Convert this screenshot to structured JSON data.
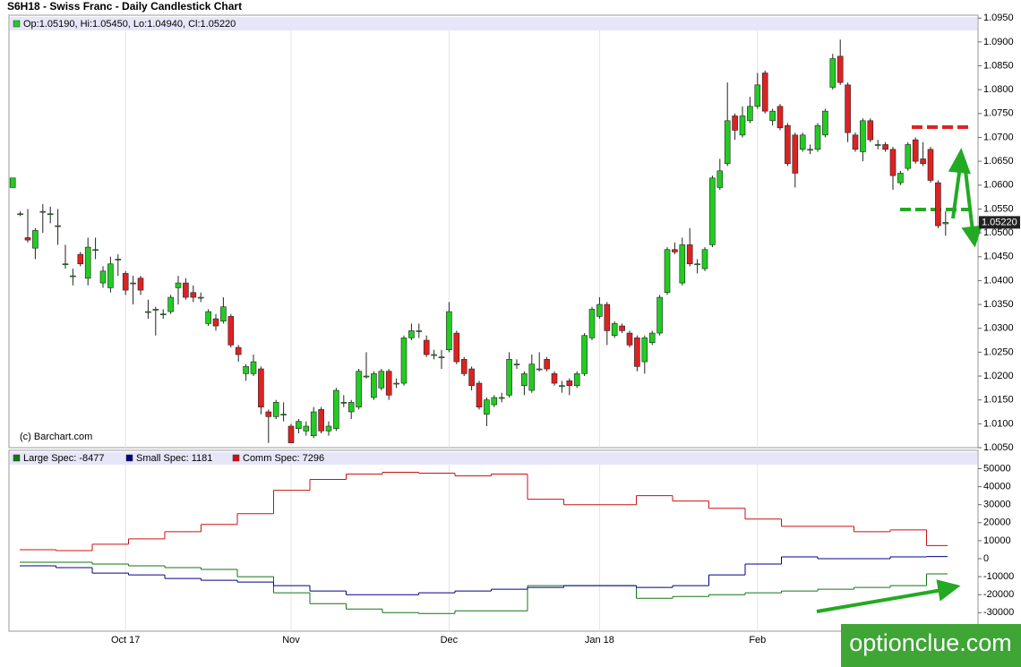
{
  "chart_data": [
    {
      "type": "candlestick",
      "title": "S6H18 - Swiss Franc - Daily Candlestick Chart",
      "ohlc_label": "Op:1.05190, Hi:1.05450, Lo:1.04940, Cl:1.05220",
      "copyright": "(c) Barchart.com",
      "categories": [
        null,
        null,
        null,
        null,
        null,
        null,
        null,
        null,
        null,
        null,
        null,
        null,
        null,
        null,
        null,
        "Oct 17",
        null,
        null,
        null,
        null,
        null,
        null,
        null,
        null,
        null,
        null,
        null,
        null,
        null,
        null,
        null,
        null,
        null,
        null,
        null,
        null,
        null,
        "Nov",
        null,
        null,
        null,
        null,
        null,
        null,
        null,
        null,
        null,
        null,
        null,
        null,
        null,
        null,
        null,
        null,
        null,
        null,
        null,
        null,
        "Dec",
        null,
        null,
        null,
        null,
        null,
        null,
        null,
        null,
        null,
        null,
        null,
        null,
        null,
        null,
        null,
        null,
        null,
        null,
        null,
        "Jan 18",
        null,
        null,
        null,
        null,
        null,
        null,
        null,
        null,
        null,
        null,
        null,
        null,
        null,
        null,
        null,
        null,
        null,
        null,
        null,
        null,
        "Feb",
        null,
        null,
        null,
        null,
        null,
        null,
        null,
        null,
        null,
        null,
        null,
        null,
        null,
        null,
        null,
        null,
        null,
        null,
        null,
        null,
        null,
        null,
        null,
        null,
        null
      ],
      "open": [
        1.0595,
        1.054,
        1.049,
        1.0468,
        1.0545,
        1.054,
        1.0515,
        1.0435,
        1.041,
        1.0455,
        1.0405,
        1.0465,
        1.0395,
        1.0385,
        1.0445,
        1.0415,
        1.0395,
        1.0405,
        1.0335,
        1.034,
        1.033,
        1.0335,
        1.0385,
        1.0395,
        1.0375,
        1.0365,
        1.031,
        1.032,
        1.0315,
        1.0325,
        1.026,
        1.0205,
        1.0205,
        1.0215,
        1.0125,
        1.0115,
        1.012,
        1.0095,
        1.009,
        1.0085,
        1.0075,
        1.013,
        1.0085,
        1.009,
        1.0145,
        1.0125,
        1.0135,
        1.02,
        1.0155,
        1.0175,
        1.021,
        1.0185,
        1.0185,
        1.028,
        1.0295,
        1.0275,
        1.0245,
        1.024,
        1.0255,
        1.029,
        1.0235,
        1.0215,
        1.0185,
        1.012,
        1.014,
        1.0155,
        1.016,
        1.0225,
        1.018,
        1.017,
        1.0215,
        1.0235,
        1.0205,
        1.018,
        1.019,
        1.018,
        1.0205,
        1.028,
        1.0325,
        1.035,
        1.0285,
        1.0305,
        1.029,
        1.028,
        1.023,
        1.027,
        1.029,
        1.0375,
        1.0465,
        1.0395,
        1.0475,
        1.0435,
        1.0425,
        1.0475,
        1.0595,
        1.0645,
        1.0745,
        1.0705,
        1.0735,
        1.0765,
        1.0835,
        1.0735,
        1.0765,
        1.0725,
        1.0705,
        1.0675,
        1.0675,
        1.0675,
        1.0705,
        1.0805,
        1.087,
        1.081,
        1.0705,
        1.067,
        1.0735,
        1.0685,
        1.0685,
        1.0675,
        1.0605,
        1.0635,
        1.0695,
        1.0655,
        1.0675,
        1.0605,
        1.0519
      ],
      "high": [
        1.0615,
        1.0545,
        1.055,
        1.051,
        1.056,
        1.0555,
        1.055,
        1.0475,
        1.0425,
        1.046,
        1.049,
        1.049,
        1.043,
        1.045,
        1.0455,
        1.042,
        1.041,
        1.041,
        1.036,
        1.0345,
        1.034,
        1.037,
        1.041,
        1.0405,
        1.039,
        1.0375,
        1.034,
        1.033,
        1.0365,
        1.033,
        1.0265,
        1.0225,
        1.0245,
        1.022,
        1.013,
        1.015,
        1.0145,
        1.01,
        1.011,
        1.0105,
        1.0135,
        1.0135,
        1.0105,
        1.0175,
        1.016,
        1.015,
        1.0215,
        1.025,
        1.021,
        1.0215,
        1.0215,
        1.0195,
        1.0285,
        1.031,
        1.031,
        1.0285,
        1.0255,
        1.0255,
        1.0355,
        1.0295,
        1.024,
        1.022,
        1.019,
        1.0155,
        1.016,
        1.0165,
        1.025,
        1.0235,
        1.021,
        1.0245,
        1.025,
        1.024,
        1.021,
        1.019,
        1.0195,
        1.021,
        1.029,
        1.0345,
        1.0365,
        1.0355,
        1.0315,
        1.031,
        1.0295,
        1.0285,
        1.0285,
        1.0295,
        1.037,
        1.047,
        1.048,
        1.049,
        1.051,
        1.0445,
        1.047,
        1.062,
        1.0655,
        1.0815,
        1.075,
        1.0765,
        1.0785,
        1.0835,
        1.084,
        1.076,
        1.077,
        1.073,
        1.071,
        1.071,
        1.0685,
        1.073,
        1.076,
        1.0875,
        1.0905,
        1.0815,
        1.071,
        1.074,
        1.074,
        1.0695,
        1.069,
        1.068,
        1.063,
        1.069,
        1.07,
        1.069,
        1.068,
        1.061,
        1.0545
      ],
      "low": [
        1.0595,
        1.0535,
        1.048,
        1.0445,
        1.05,
        1.052,
        1.0475,
        1.0425,
        1.039,
        1.043,
        1.039,
        1.0445,
        1.0385,
        1.0375,
        1.041,
        1.037,
        1.035,
        1.037,
        1.032,
        1.0285,
        1.032,
        1.033,
        1.035,
        1.036,
        1.0355,
        1.0355,
        1.0305,
        1.0295,
        1.031,
        1.026,
        1.023,
        1.019,
        1.02,
        1.012,
        1.006,
        1.011,
        1.0105,
        1.006,
        1.008,
        1.0075,
        1.007,
        1.008,
        1.0075,
        1.0085,
        1.0135,
        1.011,
        1.013,
        1.0195,
        1.015,
        1.017,
        1.015,
        1.0175,
        1.018,
        1.0275,
        1.028,
        1.024,
        1.0235,
        1.0215,
        1.025,
        1.0225,
        1.02,
        1.017,
        1.013,
        1.0095,
        1.0135,
        1.0145,
        1.0155,
        1.0215,
        1.016,
        1.0165,
        1.021,
        1.021,
        1.018,
        1.0165,
        1.016,
        1.0175,
        1.02,
        1.0275,
        1.032,
        1.0265,
        1.028,
        1.029,
        1.026,
        1.021,
        1.0205,
        1.0265,
        1.0285,
        1.037,
        1.0455,
        1.039,
        1.043,
        1.0415,
        1.042,
        1.047,
        1.059,
        1.064,
        1.0695,
        1.07,
        1.073,
        1.076,
        1.075,
        1.0725,
        1.0715,
        1.064,
        1.0595,
        1.067,
        1.0665,
        1.067,
        1.07,
        1.08,
        1.081,
        1.069,
        1.067,
        1.065,
        1.069,
        1.0675,
        1.067,
        1.059,
        1.06,
        1.063,
        1.0645,
        1.064,
        1.0605,
        1.051,
        1.0494
      ],
      "close": [
        1.0615,
        1.054,
        1.0485,
        1.0505,
        1.0545,
        1.054,
        1.0515,
        1.0435,
        1.041,
        1.0435,
        1.047,
        1.0465,
        1.042,
        1.0435,
        1.0445,
        1.038,
        1.0395,
        1.038,
        1.0335,
        1.034,
        1.033,
        1.0365,
        1.0395,
        1.0365,
        1.0365,
        1.0365,
        1.0335,
        1.0305,
        1.0345,
        1.0265,
        1.0245,
        1.022,
        1.023,
        1.0135,
        1.0115,
        1.0145,
        1.012,
        1.006,
        1.0105,
        1.0095,
        1.0125,
        1.0085,
        1.0095,
        1.017,
        1.0145,
        1.0145,
        1.021,
        1.02,
        1.0205,
        1.021,
        1.016,
        1.0185,
        1.028,
        1.0295,
        1.0295,
        1.0245,
        1.0245,
        1.024,
        1.0335,
        1.023,
        1.0205,
        1.018,
        1.0135,
        1.015,
        1.0155,
        1.0155,
        1.0235,
        1.0225,
        1.0205,
        1.0225,
        1.0215,
        1.0215,
        1.0185,
        1.018,
        1.018,
        1.0205,
        1.0285,
        1.034,
        1.035,
        1.0295,
        1.031,
        1.0295,
        1.0265,
        1.022,
        1.028,
        1.029,
        1.0365,
        1.0465,
        1.046,
        1.0475,
        1.0435,
        1.0435,
        1.0465,
        1.0615,
        1.063,
        1.0735,
        1.0715,
        1.0745,
        1.0765,
        1.081,
        1.0755,
        1.0755,
        1.072,
        1.0645,
        1.0625,
        1.0705,
        1.0675,
        1.0725,
        1.0755,
        1.0865,
        1.0815,
        1.071,
        1.0675,
        1.0735,
        1.0695,
        1.0685,
        1.0675,
        1.062,
        1.0625,
        1.0685,
        1.065,
        1.0645,
        1.061,
        1.0515,
        1.0522
      ],
      "close_label": "1.05220",
      "up_color": "#22cc22",
      "down_color": "#dd2222",
      "ylim": [
        1.005,
        1.0956
      ],
      "yticks": [
        {
          "value": 1.005,
          "label": "1.0050"
        },
        {
          "value": 1.01,
          "label": "1.0100"
        },
        {
          "value": 1.015,
          "label": "1.0150"
        },
        {
          "value": 1.02,
          "label": "1.0200"
        },
        {
          "value": 1.025,
          "label": "1.0250"
        },
        {
          "value": 1.03,
          "label": "1.0300"
        },
        {
          "value": 1.035,
          "label": "1.0350"
        },
        {
          "value": 1.04,
          "label": "1.0400"
        },
        {
          "value": 1.045,
          "label": "1.0450"
        },
        {
          "value": 1.05,
          "label": "1.0500"
        },
        {
          "value": 1.055,
          "label": "1.0550"
        },
        {
          "value": 1.06,
          "label": "1.0600"
        },
        {
          "value": 1.065,
          "label": "1.0650"
        },
        {
          "value": 1.07,
          "label": "1.0700"
        },
        {
          "value": 1.075,
          "label": "1.0750"
        },
        {
          "value": 1.08,
          "label": "1.0800"
        },
        {
          "value": 1.085,
          "label": "1.0850"
        },
        {
          "value": 1.09,
          "label": "1.0900"
        },
        {
          "value": 1.095,
          "label": "1.0950"
        }
      ]
    },
    {
      "type": "step",
      "series": [
        {
          "name": "Large Spec: -8477",
          "color": "#117711",
          "values": [
            -2000,
            -2000,
            -3000,
            -4000,
            -5000,
            -6000,
            -10000,
            -19000,
            -25000,
            -28000,
            -30000,
            -30500,
            -29000,
            -29000,
            -15000,
            -15000,
            -15000,
            -22000,
            -21000,
            -20000,
            -19000,
            -18000,
            -17000,
            -16000,
            -15000,
            -8477
          ]
        },
        {
          "name": "Small Spec: 1181",
          "color": "#000088",
          "values": [
            -4000,
            -5000,
            -8000,
            -9000,
            -11000,
            -12000,
            -13000,
            -15000,
            -18000,
            -20000,
            -20000,
            -19000,
            -18000,
            -17000,
            -16000,
            -15000,
            -15000,
            -16000,
            -15000,
            -9000,
            -3000,
            1000,
            0,
            0,
            1000,
            1181
          ]
        },
        {
          "name": "Comm Spec: 7296",
          "color": "#cc1111",
          "values": [
            5000,
            4500,
            8000,
            11000,
            15000,
            19000,
            25000,
            38000,
            44000,
            47000,
            48000,
            47500,
            46000,
            47000,
            33000,
            30000,
            30000,
            35000,
            32000,
            28000,
            22000,
            18000,
            18000,
            15000,
            16000,
            7296
          ]
        }
      ],
      "ylim": [
        -40300,
        59200
      ],
      "yticks": [
        -30000,
        -20000,
        -10000,
        0,
        10000,
        20000,
        30000,
        40000,
        50000
      ]
    }
  ],
  "watermark": "optionclue.com"
}
